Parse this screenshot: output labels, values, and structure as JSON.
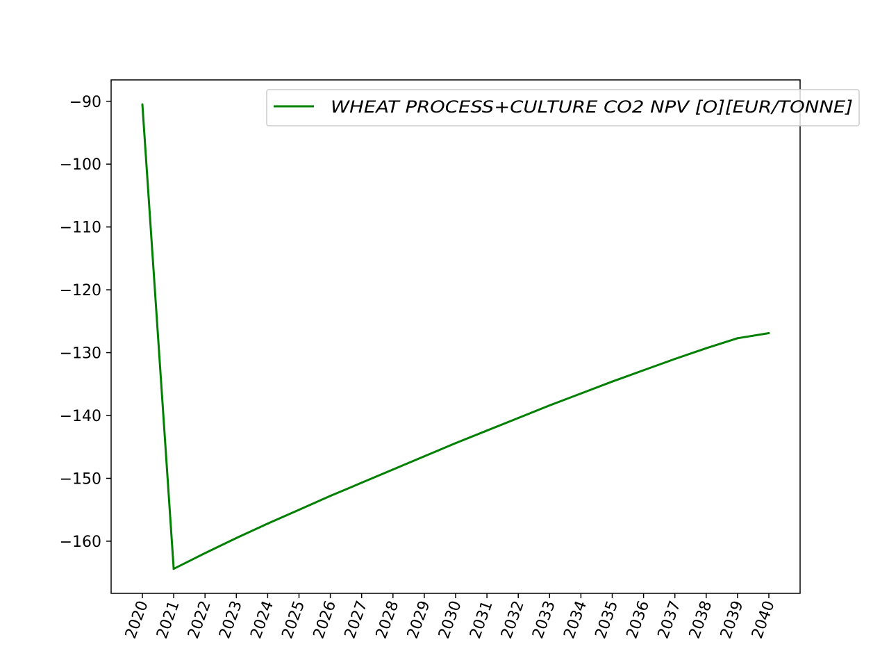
{
  "chart_data": {
    "type": "line",
    "x": [
      "2020",
      "2021",
      "2022",
      "2023",
      "2024",
      "2025",
      "2026",
      "2027",
      "2028",
      "2029",
      "2030",
      "2031",
      "2032",
      "2033",
      "2034",
      "2035",
      "2036",
      "2037",
      "2038",
      "2039",
      "2040"
    ],
    "series": [
      {
        "name": "WHEAT PROCESS+CULTURE CO2 NPV [O][EUR/TONNE]",
        "color": "#008000",
        "values": [
          -90.5,
          -164.4,
          -161.9,
          -159.5,
          -157.2,
          -155.0,
          -152.8,
          -150.7,
          -148.6,
          -146.5,
          -144.4,
          -142.4,
          -140.4,
          -138.4,
          -136.5,
          -134.6,
          -132.8,
          -131.0,
          -129.3,
          -127.7,
          -126.9
        ]
      }
    ],
    "title": "",
    "xlabel": "",
    "ylabel": "",
    "ylim": [
      -168.3,
      -86.6
    ],
    "yticks": [
      -90,
      -100,
      -110,
      -120,
      -130,
      -140,
      -150,
      -160
    ],
    "grid": false,
    "legend_position": "top-right",
    "x_tick_rotation": "70 degrees"
  }
}
